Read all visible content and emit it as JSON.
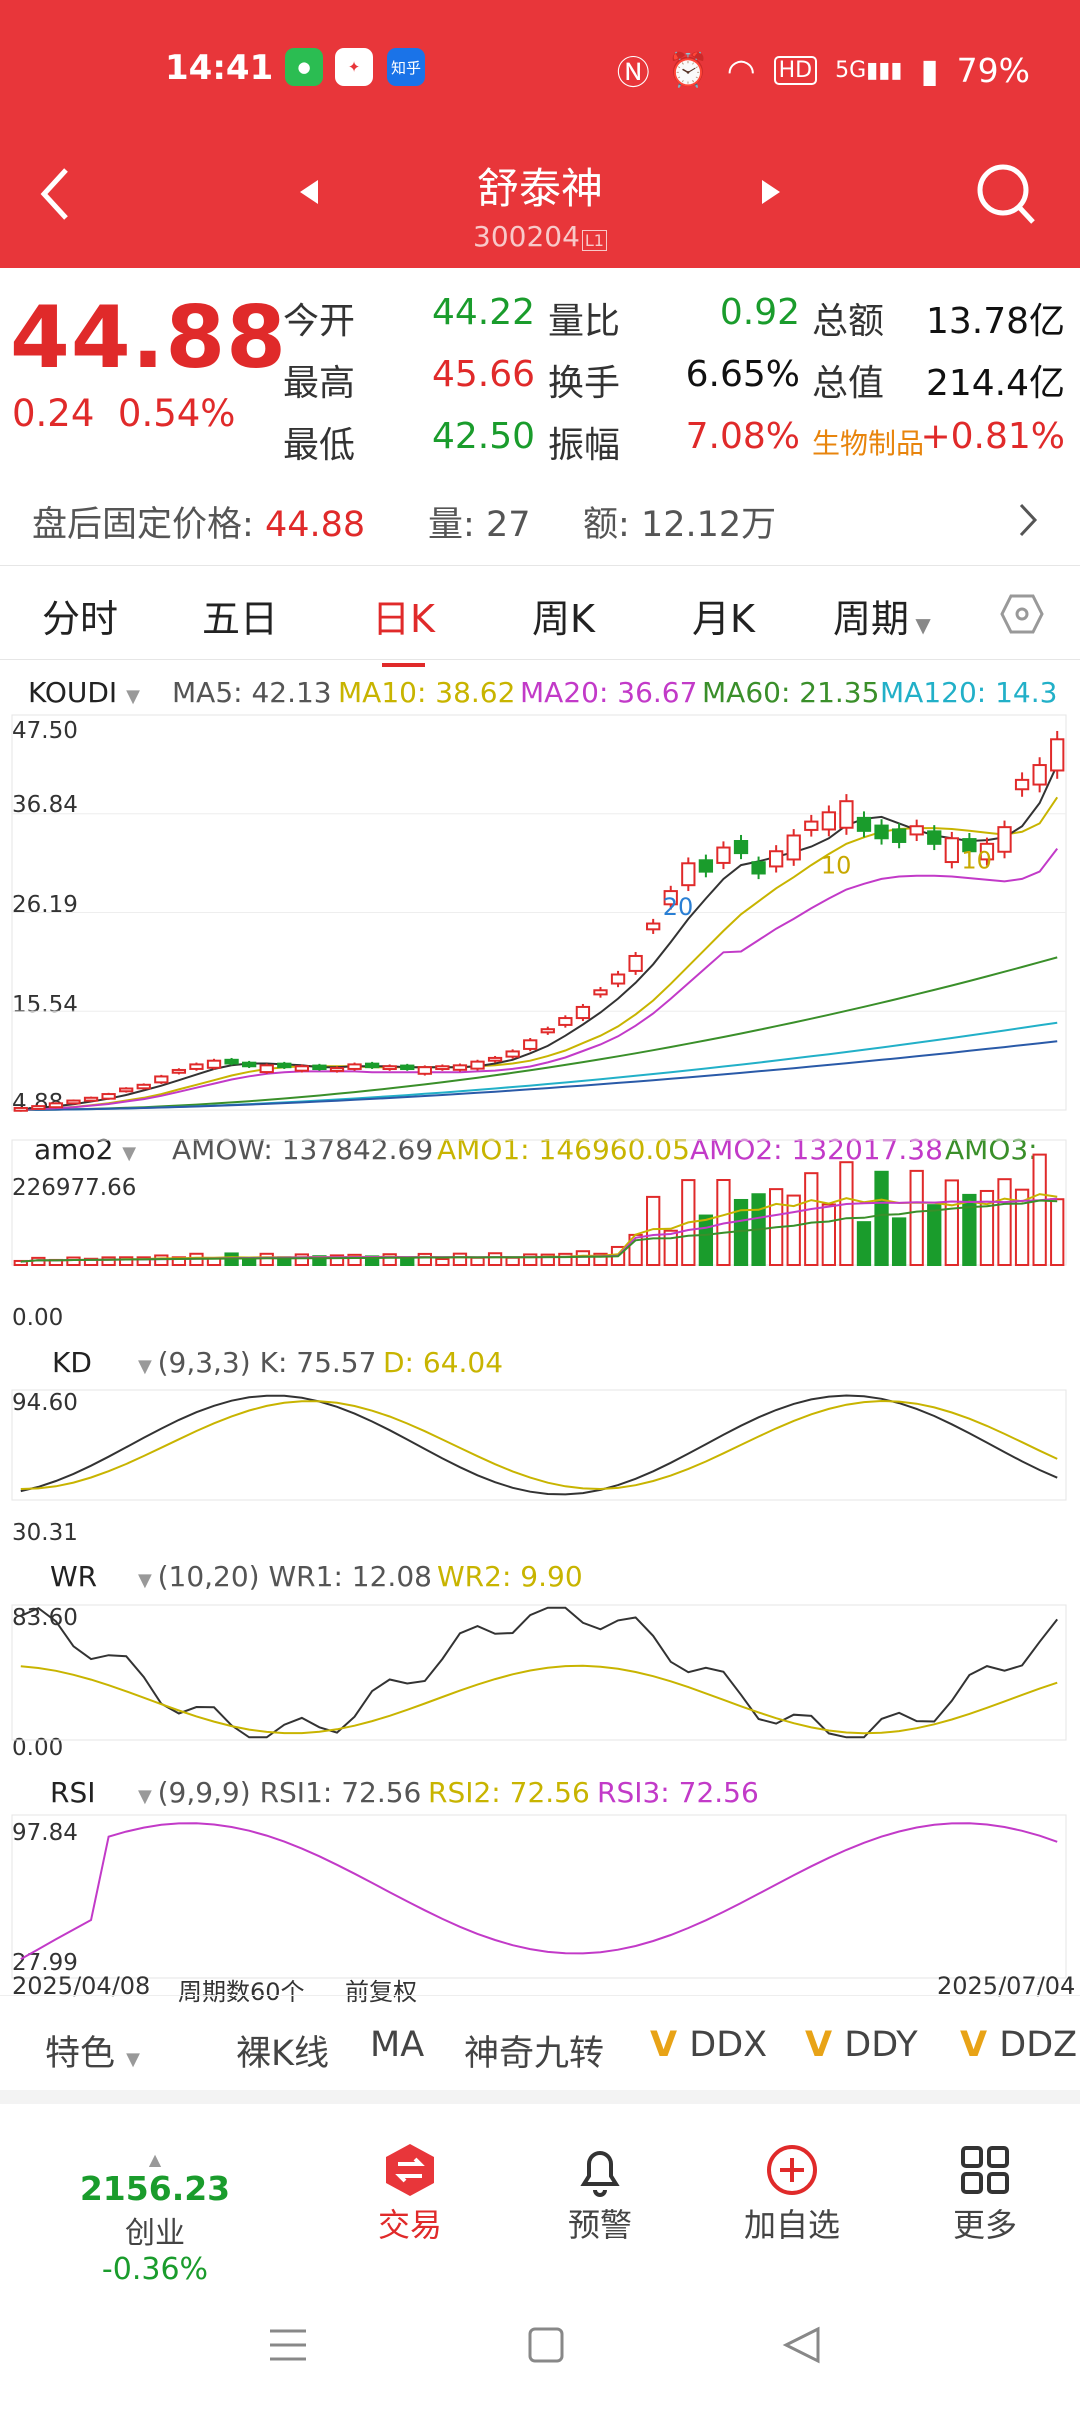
{
  "status_bar": {
    "time": "14:41",
    "app_icons": [
      "wechat",
      "fire",
      "zhihu"
    ],
    "zhihu_label": "知乎",
    "battery": "79%",
    "network": "5G",
    "hd": "HD"
  },
  "header": {
    "title": "舒泰神",
    "code": "300204",
    "board": "L1"
  },
  "quote": {
    "price": "44.88",
    "change": "0.24",
    "change_pct": "0.54%",
    "fields": [
      {
        "label": "今开",
        "value": "44.22",
        "color": "green"
      },
      {
        "label": "量比",
        "value": "0.92",
        "color": "green"
      },
      {
        "label": "总额",
        "value": "13.78亿",
        "color": "black"
      },
      {
        "label": "最高",
        "value": "45.66",
        "color": "red"
      },
      {
        "label": "换手",
        "value": "6.65%",
        "color": "black"
      },
      {
        "label": "总值",
        "value": "214.4亿",
        "color": "black"
      },
      {
        "label": "最低",
        "value": "42.50",
        "color": "green"
      },
      {
        "label": "振幅",
        "value": "7.08%",
        "color": "red"
      },
      {
        "label": "生物制品",
        "value": "+0.81%",
        "color": "red"
      }
    ],
    "after_hours": {
      "price_label": "盘后固定价格:",
      "price": "44.88",
      "vol_label": "量:",
      "vol": "27",
      "amt_label": "额:",
      "amt": "12.12万"
    }
  },
  "tabs": [
    "分时",
    "五日",
    "日K",
    "周K",
    "月K",
    "周期"
  ],
  "active_tab": "日K",
  "indicators": {
    "main": {
      "name": "KOUDI",
      "ma5": "MA5: 42.13",
      "ma10": "MA10: 38.62",
      "ma20": "MA20: 36.67",
      "ma60": "MA60: 21.35",
      "ma120": "MA120: 14.3",
      "axis": [
        "47.50",
        "36.84",
        "26.19",
        "15.54",
        "4.88"
      ],
      "markers": [
        "20",
        "10",
        "10"
      ]
    },
    "amo": {
      "name": "amo2",
      "amow": "AMOW: 137842.69",
      "amo1": "AMO1: 146960.05",
      "amo2": "AMO2: 132017.38",
      "amo3": "AMO3:",
      "axis": [
        "226977.66",
        "0.00"
      ]
    },
    "kd": {
      "name": "KD",
      "params": "(9,3,3)",
      "k": "K: 75.57",
      "d": "D: 64.04",
      "axis": [
        "94.60",
        "30.31"
      ]
    },
    "wr": {
      "name": "WR",
      "params": "(10,20)",
      "wr1": "WR1: 12.08",
      "wr2": "WR2: 9.90",
      "axis": [
        "83.60",
        "0.00"
      ]
    },
    "rsi": {
      "name": "RSI",
      "params": "(9,9,9)",
      "rsi1": "RSI1: 72.56",
      "rsi2": "RSI2: 72.56",
      "rsi3": "RSI3: 72.56",
      "axis": [
        "97.84",
        "27.99"
      ]
    }
  },
  "footer_info": {
    "start_date": "2025/04/08",
    "period_count": "周期数60个",
    "adjust": "前复权",
    "end_date": "2025/07/04"
  },
  "tools": [
    "特色",
    "裸K线",
    "MA",
    "神奇九转",
    "DDX",
    "DDY",
    "DDZ"
  ],
  "index": {
    "value": "2156.23",
    "name": "创业",
    "change": "-0.36%"
  },
  "nav": [
    "交易",
    "预警",
    "加自选",
    "更多"
  ],
  "colors": {
    "header_red": "#e8363a",
    "up_red": "#e02a2a",
    "down_green": "#1a9c2c",
    "ma5": "#333333",
    "ma10": "#c8b400",
    "ma20": "#c23ac8",
    "ma60": "#3a8f2a",
    "ma120": "#22b0c8"
  },
  "chart_data": {
    "type": "candlestick",
    "x_range": [
      "2025/04/08",
      "2025/07/04"
    ],
    "y_range": [
      4.88,
      47.5
    ],
    "close": [
      5.1,
      5.3,
      5.6,
      5.9,
      6.2,
      6.6,
      7.2,
      7.6,
      8.5,
      9.2,
      9.8,
      10.2,
      9.9,
      9.6,
      9.7,
      9.5,
      9.6,
      9.3,
      9.4,
      9.8,
      9.5,
      9.6,
      9.3,
      9.5,
      9.6,
      9.7,
      10.1,
      10.5,
      11.2,
      12.4,
      13.6,
      14.8,
      16.0,
      17.8,
      19.5,
      21.5,
      25.0,
      28.5,
      31.5,
      30.6,
      33.2,
      32.6,
      30.4,
      32.8,
      34.5,
      36.0,
      37.0,
      38.2,
      35.0,
      34.2,
      33.8,
      35.5,
      33.6,
      34.2,
      32.8,
      33.6,
      35.4,
      40.5,
      42.1,
      44.88
    ],
    "up": [
      true,
      true,
      true,
      true,
      true,
      true,
      true,
      true,
      true,
      true,
      true,
      true,
      false,
      false,
      true,
      false,
      true,
      false,
      true,
      true,
      false,
      true,
      false,
      true,
      true,
      true,
      true,
      true,
      true,
      true,
      true,
      true,
      true,
      true,
      true,
      true,
      true,
      true,
      true,
      false,
      true,
      false,
      false,
      true,
      true,
      true,
      true,
      true,
      false,
      false,
      false,
      true,
      false,
      true,
      false,
      true,
      true,
      true,
      true,
      true
    ],
    "ma5": [
      5.0,
      5.1,
      5.3,
      5.5,
      5.8,
      6.1,
      6.5,
      7.0,
      7.5,
      8.1,
      8.7,
      9.3,
      9.7,
      9.9,
      9.9,
      9.8,
      9.7,
      9.5,
      9.5,
      9.6,
      9.6,
      9.6,
      9.5,
      9.5,
      9.5,
      9.5,
      9.6,
      9.9,
      10.3,
      11.0,
      11.8,
      12.9,
      14.1,
      15.4,
      16.9,
      18.6,
      20.6,
      23.0,
      25.5,
      27.7,
      29.8,
      31.3,
      31.7,
      32.2,
      32.7,
      33.3,
      34.2,
      35.6,
      36.3,
      36.5,
      35.8,
      35.1,
      34.5,
      34.2,
      33.9,
      34.0,
      34.3,
      35.5,
      38.0,
      42.13
    ],
    "ma10": [
      4.9,
      5.0,
      5.1,
      5.2,
      5.4,
      5.6,
      5.9,
      6.2,
      6.6,
      7.1,
      7.6,
      8.1,
      8.6,
      9.0,
      9.3,
      9.5,
      9.6,
      9.6,
      9.6,
      9.6,
      9.5,
      9.5,
      9.5,
      9.5,
      9.5,
      9.5,
      9.6,
      9.7,
      9.9,
      10.2,
      10.7,
      11.3,
      12.1,
      12.9,
      13.9,
      15.2,
      16.7,
      18.5,
      20.4,
      22.3,
      24.2,
      26.0,
      27.4,
      28.8,
      30.0,
      31.3,
      32.5,
      33.6,
      34.3,
      34.9,
      35.2,
      35.3,
      35.3,
      35.2,
      35.0,
      34.8,
      34.6,
      34.9,
      35.8,
      38.62
    ]
  }
}
